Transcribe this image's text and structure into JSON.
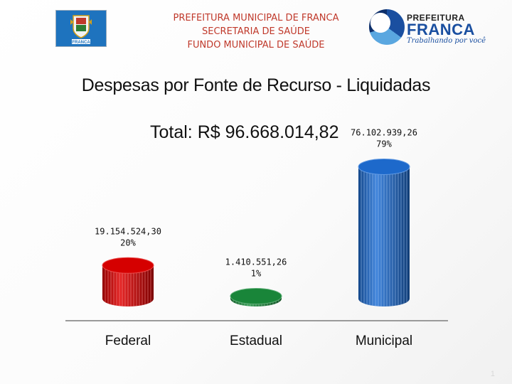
{
  "header": {
    "lines": [
      "PREFEITURA MUNICIPAL DE FRANCA",
      "SECRETARIA DE SAÚDE",
      "FUNDO MUNICIPAL DE SAÚDE"
    ],
    "seal_text": "FRANCA",
    "brand": {
      "top": "PREFEITURA",
      "main": "FRANCA",
      "tagline": "Trabalhando por você"
    }
  },
  "chart_data": {
    "type": "bar",
    "title": "Despesas por Fonte de Recurso - Liquidadas",
    "subtitle": "Total: R$ 96.668.014,82",
    "categories": [
      "Federal",
      "Estadual",
      "Municipal"
    ],
    "values": [
      19154524.3,
      1410551.26,
      76102939.26
    ],
    "value_labels": [
      "19.154.524,30",
      "1.410.551,26",
      "76.102.939,26"
    ],
    "percent_labels": [
      "20%",
      "1%",
      "79%"
    ],
    "colors": [
      "#e00000",
      "#1a8c3c",
      "#1f6fd6"
    ],
    "ylim": [
      0,
      80000000
    ],
    "grid": false,
    "legend": "none"
  },
  "page_number": "1"
}
